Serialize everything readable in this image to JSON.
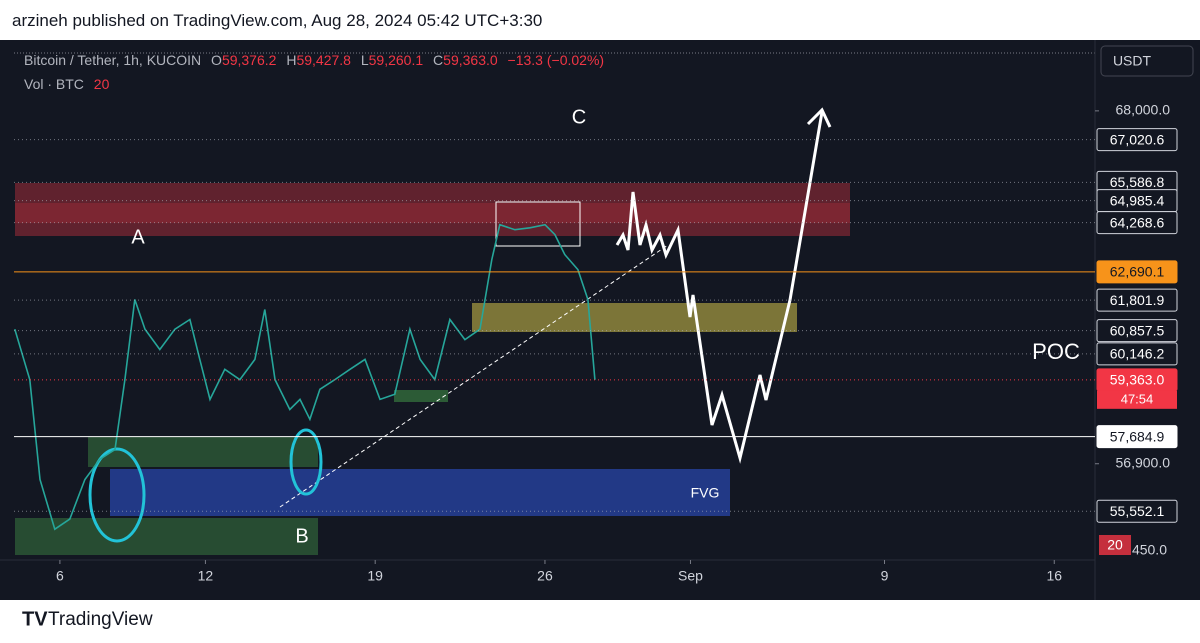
{
  "header": {
    "publisher": "arzineh published on TradingView.com, Aug 28, 2024 05:42 UTC+3:30"
  },
  "legend": {
    "symbol": "Bitcoin / Tether, 1h, KUCOIN",
    "open_label": "O",
    "open": "59,376.2",
    "high_label": "H",
    "high": "59,427.8",
    "low_label": "L",
    "low": "59,260.1",
    "close_label": "C",
    "close": "59,363.0",
    "change": "−13.3 (−0.02%)",
    "volume_label": "Vol · BTC",
    "volume": "20"
  },
  "currency": "USDT",
  "countdown": "47:54",
  "volume_badge": "20",
  "volume_axis_label": "450.0",
  "annotations": {
    "a": "A",
    "b": "B",
    "c": "C",
    "poc": "POC",
    "fvg": "FVG"
  },
  "footer": {
    "brand": "TradingView"
  },
  "chart_data": {
    "type": "line",
    "log_scale": true,
    "xlim": [
      3.53,
      48.68
    ],
    "xticks": [
      6,
      12,
      19,
      26,
      {
        "value": 32,
        "label": "Sep"
      },
      {
        "value": 40,
        "label": "9"
      },
      {
        "value": 47,
        "label": "16"
      }
    ],
    "ylim": [
      54200,
      70300
    ],
    "yticks": [
      {
        "value": 68000,
        "label": "68,000.0"
      },
      {
        "value": 56900,
        "label": "56,900.0"
      }
    ],
    "price_lines": [
      {
        "value": 67020.6,
        "label": "67,020.6",
        "color": "#b2b5be"
      },
      {
        "value": 65586.8,
        "label": "65,586.8",
        "color": "#b2b5be"
      },
      {
        "value": 64985.4,
        "label": "64,985.4",
        "color": "#b2b5be"
      },
      {
        "value": 64268.6,
        "label": "64,268.6",
        "color": "#b2b5be"
      },
      {
        "value": 62690.1,
        "label": "62,690.1",
        "color": "#f7931a"
      },
      {
        "value": 61801.9,
        "label": "61,801.9",
        "color": "#b2b5be"
      },
      {
        "value": 60857.5,
        "label": "60,857.5",
        "color": "#b2b5be"
      },
      {
        "value": 60146.2,
        "label": "60,146.2",
        "color": "#b2b5be"
      },
      {
        "value": 59363.0,
        "label": "59,363.0",
        "color": "#f23645"
      },
      {
        "value": 57684.9,
        "label": "57,684.9",
        "color": "#ffffff"
      },
      {
        "value": 55552.1,
        "label": "55,552.1",
        "color": "#b2b5be"
      }
    ],
    "series": [
      {
        "name": "Bitcoin / Tether",
        "color": "#26a69a",
        "x": [
          4.14,
          4.76,
          5.18,
          5.79,
          6.41,
          7.03,
          7.65,
          8.27,
          8.68,
          9.09,
          9.51,
          10.12,
          10.74,
          11.36,
          11.77,
          12.19,
          12.8,
          13.42,
          14.04,
          14.45,
          14.87,
          15.48,
          15.9,
          16.31,
          16.72,
          17.34,
          17.96,
          18.58,
          19.2,
          19.81,
          20.43,
          20.85,
          21.46,
          22.08,
          22.7,
          23.32,
          23.81,
          24.14,
          24.76,
          25.38,
          26.0,
          26.41,
          26.82,
          27.36,
          27.77,
          28.06
        ],
        "values": [
          60900,
          59370,
          56450,
          55050,
          55330,
          56450,
          57030,
          57310,
          59370,
          61820,
          60900,
          60280,
          60900,
          61200,
          59980,
          58780,
          59680,
          59370,
          59980,
          61510,
          59370,
          58480,
          58780,
          58190,
          59080,
          59370,
          59680,
          59980,
          58780,
          58930,
          60900,
          59980,
          59370,
          61200,
          60580,
          60900,
          63080,
          64200,
          64040,
          64100,
          64200,
          63880,
          63240,
          62760,
          61820,
          59363
        ]
      }
    ]
  }
}
